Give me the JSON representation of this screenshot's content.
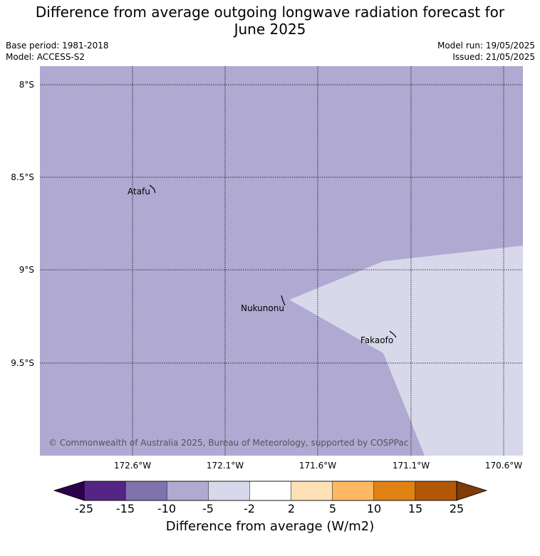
{
  "title_line1": "Difference from average outgoing longwave radiation forecast for",
  "title_line2": "June 2025",
  "base_period": "Base period: 1981-2018",
  "model": "Model: ACCESS-S2",
  "model_run": "Model run: 19/05/2025",
  "issued": "Issued: 21/05/2025",
  "copyright": "© Commonwealth of Australia 2025, Bureau of Meteorology, supported by COSPPac",
  "lat_labels": [
    "8°S",
    "8.5°S",
    "9°S",
    "9.5°S"
  ],
  "lon_labels": [
    "172.6°W",
    "172.1°W",
    "171.6°W",
    "171.1°W",
    "170.6°W"
  ],
  "places": [
    "Atafu",
    "Nukunonu",
    "Fakaofo"
  ],
  "colorbar": {
    "ticks": [
      "-25",
      "-15",
      "-10",
      "-5",
      "-2",
      "2",
      "5",
      "10",
      "15",
      "25"
    ],
    "colors": [
      "#552586",
      "#8073ad",
      "#b0a9d1",
      "#d8d8eb",
      "#ffffff",
      "#fee0b6",
      "#fdb863",
      "#e08214",
      "#b35806"
    ],
    "under_color": "#2d004b",
    "over_color": "#7f3b08",
    "title": "Difference from average (W/m2)"
  },
  "field_colors": {
    "main": "#b0a9d1",
    "light": "#d8d8eb"
  }
}
